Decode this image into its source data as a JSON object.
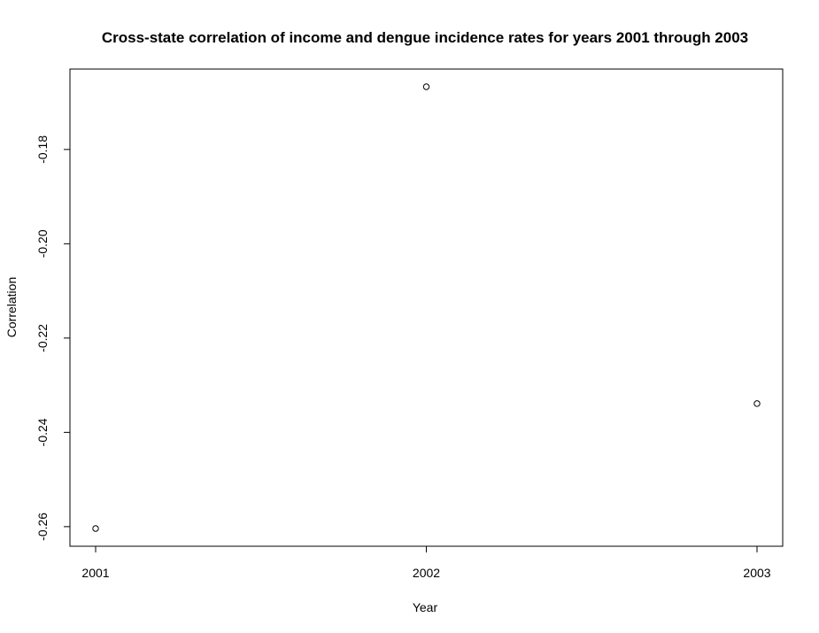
{
  "chart_data": {
    "type": "scatter",
    "title": "Cross-state correlation of income and dengue incidence rates for years 2001 through 2003",
    "xlabel": "Year",
    "ylabel": "Correlation",
    "x": [
      2001,
      2002,
      2003
    ],
    "y": [
      -0.2604,
      -0.1667,
      -0.2339
    ],
    "x_ticks": [
      "2001",
      "2002",
      "2003"
    ],
    "y_ticks": [
      "-0.26",
      "-0.24",
      "-0.22",
      "-0.20",
      "-0.18"
    ],
    "xlim": [
      2001,
      2003
    ],
    "ylim": [
      -0.2604,
      -0.1667
    ],
    "grid": false,
    "legend": "none",
    "point_style": "open-circle",
    "colors": {
      "marker_stroke": "#000000",
      "marker_fill": "#ffffff",
      "frame": "#000000",
      "background": "#ffffff"
    }
  }
}
